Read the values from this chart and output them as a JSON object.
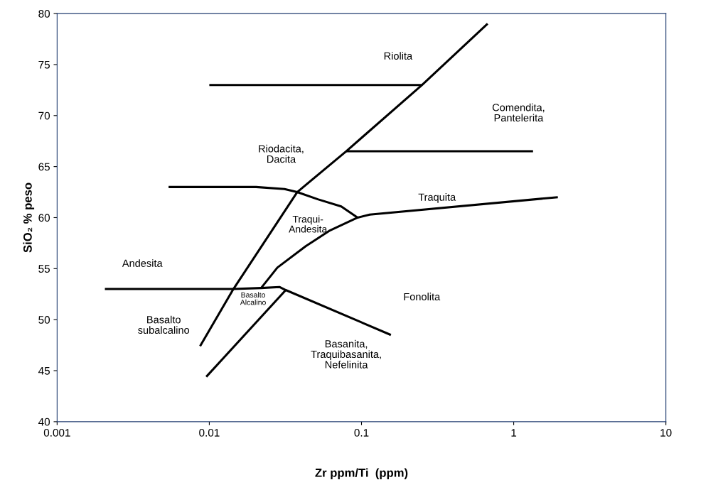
{
  "chart_data": {
    "type": "line",
    "xlabel": "Zr ppm/Ti  (ppm)",
    "ylabel": "SiO₂ % peso",
    "log": "x",
    "xlim": [
      0.001,
      10
    ],
    "xticks": [
      0.001,
      0.01,
      0.1,
      1,
      10
    ],
    "ylim": [
      40,
      80
    ],
    "yticks": [
      40,
      45,
      50,
      55,
      60,
      65,
      70,
      75,
      80
    ],
    "grid": false,
    "marker": "none",
    "line_style": "solid",
    "series": [
      {
        "color": "#000000",
        "x": [
          0.01,
          0.25
        ],
        "values": [
          73,
          73
        ]
      },
      {
        "color": "#000000",
        "x": [
          0.0087,
          0.0144,
          0.0378,
          0.0793,
          0.25,
          0.674
        ],
        "values": [
          47.4,
          53,
          62.5,
          66.5,
          73,
          79
        ]
      },
      {
        "color": "#000000",
        "x": [
          0.0793,
          1.34
        ],
        "values": [
          66.5,
          66.5
        ]
      },
      {
        "color": "#000000",
        "x": [
          0.0054,
          0.0203,
          0.0312,
          0.0378,
          0.0516,
          0.0736,
          0.0943
        ],
        "values": [
          63,
          63,
          62.8,
          62.5,
          61.8,
          61.1,
          60
        ]
      },
      {
        "color": "#000000",
        "x": [
          0.0219,
          0.028,
          0.043,
          0.0613,
          0.0943,
          0.1132,
          1.95
        ],
        "values": [
          53.1,
          55.1,
          57.2,
          58.7,
          60,
          60.3,
          62
        ]
      },
      {
        "color": "#000000",
        "x": [
          0.00206,
          0.0144,
          0.0219,
          0.0289,
          0.0318,
          0.156
        ],
        "values": [
          53,
          53,
          53.1,
          53.2,
          52.9,
          48.5
        ]
      },
      {
        "color": "#000000",
        "x": [
          0.00955,
          0.0318
        ],
        "values": [
          44.4,
          52.9
        ]
      }
    ],
    "annotations": [
      "Riolita",
      "Comendita,\nPantelerita",
      "Riodacita,\nDacita",
      "Traqui-\nAndesita",
      "Traquita",
      "Andesita",
      "Basalto\nAlcalino",
      "Fonolita",
      "Basalto\nsubalcalino",
      "Basanita,\nTraquibasanita,\nNefelinita"
    ]
  }
}
